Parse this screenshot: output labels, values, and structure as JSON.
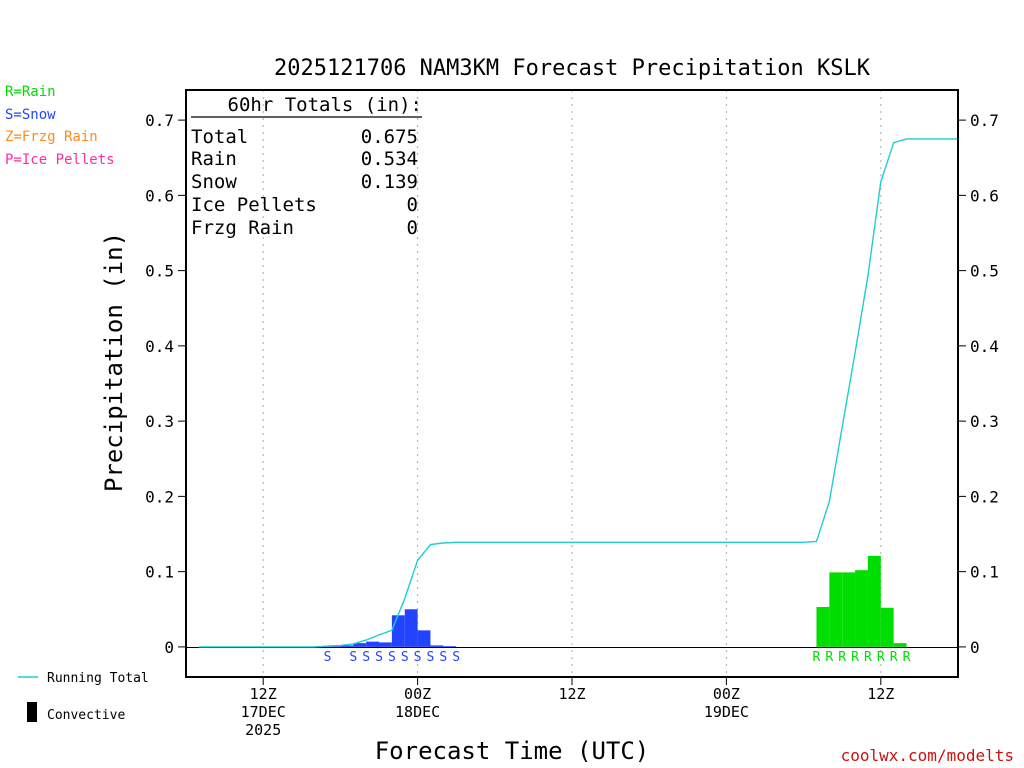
{
  "chart_data": {
    "type": "bar",
    "title": "2025121706 NAM3KM Forecast Precipitation KSLK",
    "xlabel": "Forecast Time (UTC)",
    "ylabel": "Precipitation (in)",
    "ylim": [
      -0.04,
      0.74
    ],
    "yticks": [
      "0",
      "0.1",
      "0.2",
      "0.3",
      "0.4",
      "0.5",
      "0.6",
      "0.7"
    ],
    "xlim": [
      0,
      60
    ],
    "xticks": [
      {
        "hour": 6,
        "lines": [
          "12Z",
          "17DEC",
          "2025"
        ]
      },
      {
        "hour": 18,
        "lines": [
          "00Z",
          "18DEC"
        ]
      },
      {
        "hour": 30,
        "lines": [
          "12Z"
        ]
      },
      {
        "hour": 42,
        "lines": [
          "00Z",
          "19DEC"
        ]
      },
      {
        "hour": 54,
        "lines": [
          "12Z"
        ]
      }
    ],
    "grid": "vertical dotted at major ticks",
    "legend": {
      "ptypes": [
        {
          "label": "R=Rain",
          "color": "#00dd00"
        },
        {
          "label": "S=Snow",
          "color": "#2244ff"
        },
        {
          "label": "Z=Frzg Rain",
          "color": "#ff8c1a"
        },
        {
          "label": "P=Ice Pellets",
          "color": "#ff2ea0"
        }
      ],
      "running_total": "Running Total",
      "convective": "Convective"
    },
    "totals": {
      "header": "60hr Totals (in):",
      "rows": [
        {
          "label": "Total",
          "value": "0.675"
        },
        {
          "label": "Rain",
          "value": "0.534"
        },
        {
          "label": "Snow",
          "value": "0.139"
        },
        {
          "label": "Ice Pellets",
          "value": "0"
        },
        {
          "label": "Frzg Rain",
          "value": "0"
        }
      ]
    },
    "series": [
      {
        "name": "Snow",
        "color": "#2244ff",
        "bars": [
          {
            "hour": 11,
            "value": 0.001
          },
          {
            "hour": 12,
            "value": 0.001
          },
          {
            "hour": 13,
            "value": 0.002
          },
          {
            "hour": 14,
            "value": 0.005
          },
          {
            "hour": 15,
            "value": 0.007
          },
          {
            "hour": 16,
            "value": 0.006
          },
          {
            "hour": 17,
            "value": 0.042
          },
          {
            "hour": 18,
            "value": 0.05
          },
          {
            "hour": 19,
            "value": 0.022
          },
          {
            "hour": 20,
            "value": 0.002
          },
          {
            "hour": 21,
            "value": 0.001
          }
        ]
      },
      {
        "name": "Rain",
        "color": "#00dd00",
        "bars": [
          {
            "hour": 50,
            "value": 0.053
          },
          {
            "hour": 51,
            "value": 0.099
          },
          {
            "hour": 52,
            "value": 0.099
          },
          {
            "hour": 53,
            "value": 0.102
          },
          {
            "hour": 54,
            "value": 0.121
          },
          {
            "hour": 55,
            "value": 0.052
          },
          {
            "hour": 56,
            "value": 0.005
          }
        ]
      },
      {
        "name": "Running Total",
        "color": "#1ecfcf",
        "points": [
          [
            1,
            0
          ],
          [
            10,
            0
          ],
          [
            11,
            0.001
          ],
          [
            12,
            0.002
          ],
          [
            13,
            0.004
          ],
          [
            14,
            0.009
          ],
          [
            15,
            0.016
          ],
          [
            16,
            0.022
          ],
          [
            17,
            0.064
          ],
          [
            18,
            0.115
          ],
          [
            19,
            0.136
          ],
          [
            20,
            0.138
          ],
          [
            21,
            0.139
          ],
          [
            25,
            0.139
          ],
          [
            48,
            0.139
          ],
          [
            49,
            0.14
          ],
          [
            50,
            0.193
          ],
          [
            51,
            0.292
          ],
          [
            52,
            0.391
          ],
          [
            53,
            0.493
          ],
          [
            54,
            0.618
          ],
          [
            55,
            0.67
          ],
          [
            56,
            0.675
          ],
          [
            60,
            0.675
          ]
        ]
      }
    ],
    "ptype_markers": {
      "snow": {
        "letter": "S",
        "color": "#2244ff",
        "hours": [
          11,
          13,
          14,
          15,
          16,
          17,
          18,
          19,
          20,
          21
        ]
      },
      "rain": {
        "letter": "R",
        "color": "#00dd00",
        "hours": [
          49,
          50,
          51,
          52,
          53,
          54,
          55,
          56
        ]
      }
    },
    "credit": "coolwx.com/modelts"
  }
}
